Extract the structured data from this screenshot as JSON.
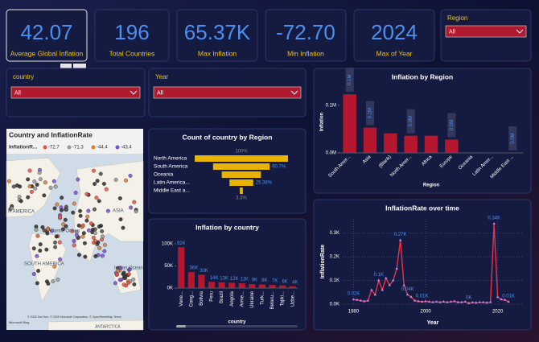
{
  "cards": [
    {
      "value": "42.07",
      "label": "Average Global Inflation"
    },
    {
      "value": "196",
      "label": "Total Countries"
    },
    {
      "value": "65.37K",
      "label": "Max Inflation"
    },
    {
      "value": "-72.70",
      "label": "Min Inflation"
    },
    {
      "value": "2024",
      "label": "Max of Year"
    }
  ],
  "slicers": {
    "region": {
      "label": "Region",
      "value": "All"
    },
    "country": {
      "label": "country",
      "value": "All"
    },
    "year": {
      "label": "Year",
      "value": "All"
    }
  },
  "map": {
    "title": "Country and InflationRate",
    "legend_title": "InflationR...",
    "legend": [
      {
        "label": "-72.7",
        "color": "#e8543f"
      },
      {
        "label": "-71.3",
        "color": "#9a9a9a"
      },
      {
        "label": "-44.4",
        "color": "#e07b39"
      },
      {
        "label": "-43.4",
        "color": "#7b4fd6"
      }
    ],
    "labels": [
      "H AMERICA",
      "Atlantic Ocean",
      "SOUTH AMERICA",
      "Indian Ocean",
      "ASIA",
      "ANTARCTICA"
    ],
    "attribution": "© 2025 TomTom, © 2025 Microsoft Corporation, © OpenStreetMap Terms",
    "logo": "Microsoft Bing"
  },
  "chart_data": [
    {
      "type": "bar",
      "title": "Inflation by Region",
      "y_label": "Inflation",
      "x_label": "Region",
      "color": "#b5172f",
      "categories": [
        "South Amer...",
        "Asia",
        "(Blank)",
        "North Amer...",
        "Africa",
        "Europe",
        "Oceania",
        "Latin Amer...",
        "Middle East ..."
      ],
      "values": [
        123000,
        53000,
        41000,
        36000,
        36000,
        28000,
        1000,
        500,
        0
      ],
      "value_labels": [
        "0.1M",
        "0.1M",
        null,
        "0.0M",
        null,
        "0.0M",
        null,
        null,
        "0.0M"
      ],
      "ylim": [
        0,
        130000
      ],
      "yticks": [
        {
          "value": 0,
          "label": "0.0M"
        },
        {
          "value": 100000,
          "label": "0.1M"
        }
      ]
    },
    {
      "type": "funnel",
      "title": "Count of country by Region",
      "color": "#e8b400",
      "categories": [
        "North America",
        "South America",
        "Oceania",
        "Latin America...",
        "Middle East a..."
      ],
      "values": [
        100,
        60.7,
        42,
        25.38,
        3.3
      ],
      "value_labels": [
        "100%",
        "60.7%",
        null,
        "25.38%",
        "3.3%"
      ]
    },
    {
      "type": "bar",
      "title": "Inflation by country",
      "x_label": "country",
      "color": "#b5172f",
      "categories": [
        "Vene...",
        "Cong...",
        "Bolivia",
        "Peru",
        "Brazil",
        "Angola",
        "Arme...",
        "Ukraine",
        "Turk...",
        "Belaru...",
        "Tajiki...",
        "Uzbe..."
      ],
      "values": [
        92000,
        36000,
        30000,
        14000,
        13000,
        12000,
        11000,
        9000,
        8000,
        7000,
        6000,
        4000
      ],
      "value_labels": [
        "92K",
        "36K",
        "30K",
        "14K",
        "13K",
        "12K",
        "11K",
        "9K",
        "8K",
        "7K",
        "6K",
        "4K"
      ],
      "ylim": [
        0,
        105000
      ],
      "yticks": [
        {
          "value": 0,
          "label": "0K"
        },
        {
          "value": 50000,
          "label": "50K"
        },
        {
          "value": 100000,
          "label": "100K"
        }
      ]
    },
    {
      "type": "line",
      "title": "InflationRate over time",
      "y_label": "InflationRate",
      "x_label": "Year",
      "color": "#e8334a",
      "grid": true,
      "x": [
        1980,
        1981,
        1982,
        1983,
        1984,
        1985,
        1986,
        1987,
        1988,
        1989,
        1990,
        1991,
        1992,
        1993,
        1994,
        1995,
        1996,
        1997,
        1998,
        1999,
        2000,
        2001,
        2002,
        2003,
        2004,
        2005,
        2006,
        2007,
        2008,
        2009,
        2010,
        2011,
        2012,
        2013,
        2014,
        2015,
        2016,
        2017,
        2018,
        2019,
        2020,
        2021,
        2022,
        2023
      ],
      "values": [
        20,
        18,
        15,
        12,
        15,
        60,
        40,
        100,
        60,
        110,
        80,
        100,
        150,
        270,
        80,
        40,
        30,
        15,
        12,
        10,
        12,
        10,
        8,
        10,
        8,
        10,
        8,
        10,
        12,
        8,
        8,
        10,
        4,
        7,
        6,
        8,
        8,
        6,
        8,
        340,
        30,
        20,
        18,
        10
      ],
      "value_labels": [
        "0.02K",
        null,
        null,
        null,
        null,
        null,
        null,
        "0.1K",
        null,
        null,
        null,
        null,
        null,
        "0.27K",
        null,
        "0.04K",
        null,
        null,
        null,
        "0.01K",
        null,
        null,
        null,
        null,
        null,
        null,
        null,
        null,
        null,
        null,
        null,
        null,
        "0K",
        null,
        null,
        null,
        null,
        null,
        null,
        "0.34K",
        null,
        null,
        null,
        "0.01K"
      ],
      "xlim": [
        1977,
        2027
      ],
      "xticks": [
        1980,
        2000,
        2020
      ],
      "ylim": [
        0,
        360
      ],
      "yticks": [
        {
          "value": 0,
          "label": "0.0K"
        },
        {
          "value": 100,
          "label": "0.1K"
        },
        {
          "value": 200,
          "label": "0.2K"
        },
        {
          "value": 300,
          "label": "0.3K"
        }
      ]
    }
  ]
}
